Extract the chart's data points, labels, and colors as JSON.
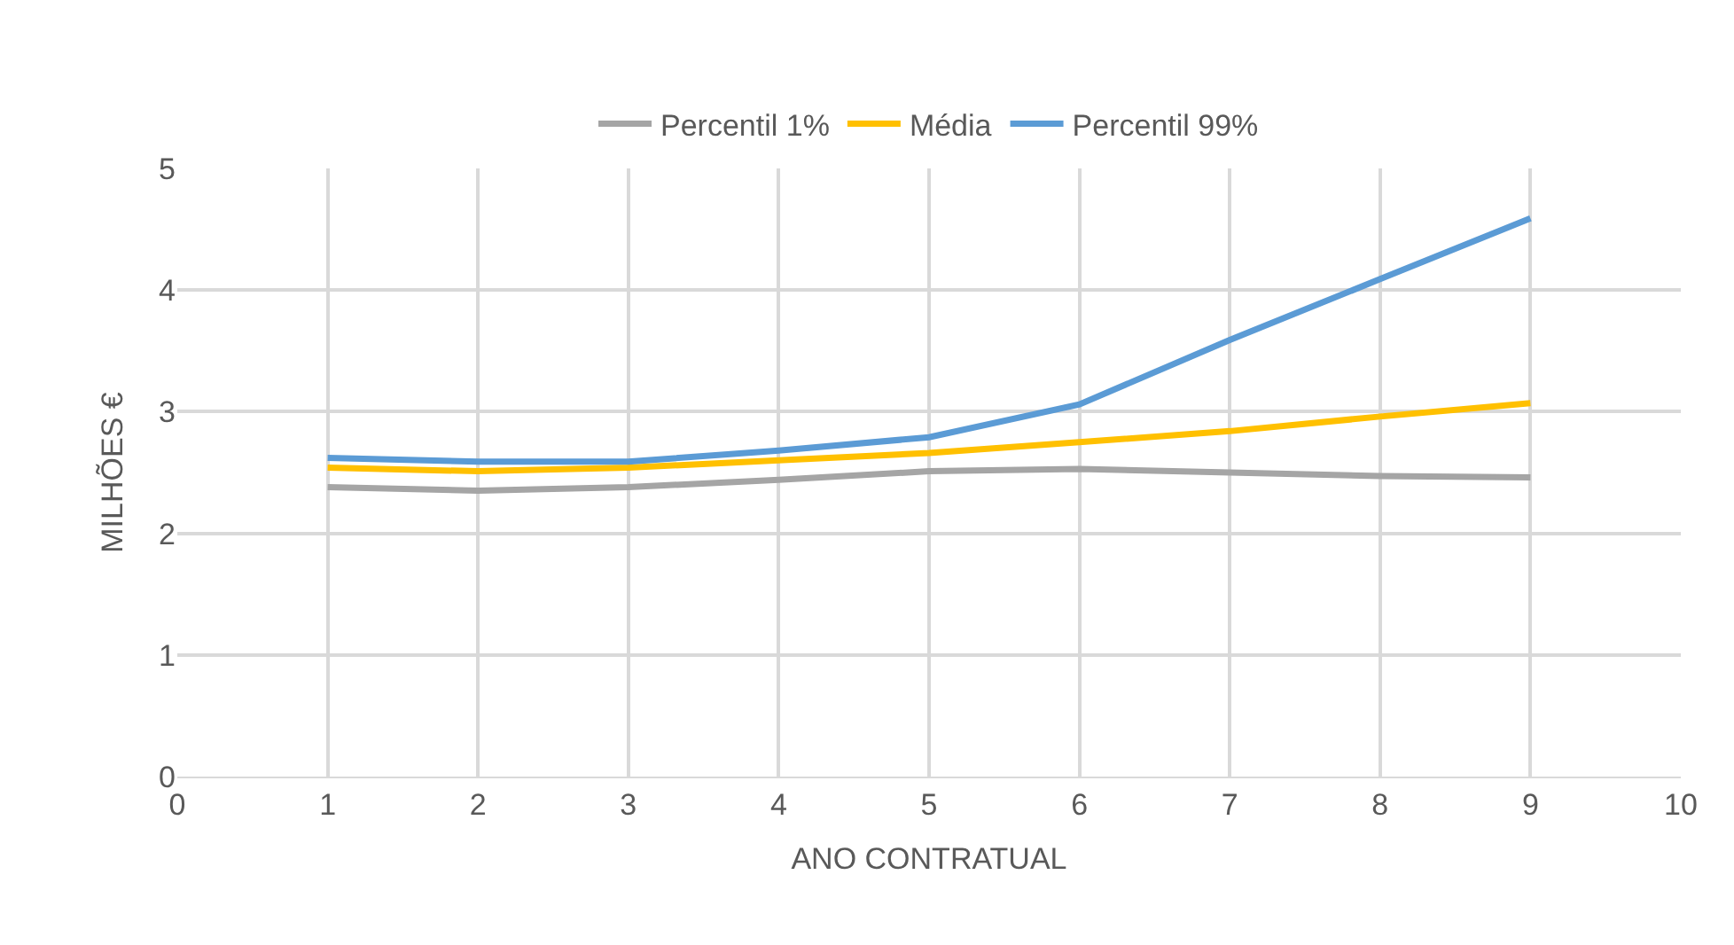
{
  "chart_data": {
    "type": "line",
    "xlabel": "ANO CONTRATUAL",
    "ylabel": "MILHÕES €",
    "x": [
      1,
      2,
      3,
      4,
      5,
      6,
      7,
      8,
      9
    ],
    "series": [
      {
        "name": "Percentil 1%",
        "color": "#a5a5a5",
        "values": [
          2.38,
          2.35,
          2.38,
          2.44,
          2.51,
          2.53,
          2.5,
          2.47,
          2.46
        ]
      },
      {
        "name": "Média",
        "color": "#ffc000",
        "values": [
          2.54,
          2.51,
          2.54,
          2.6,
          2.66,
          2.75,
          2.84,
          2.96,
          3.07
        ]
      },
      {
        "name": "Percentil 99%",
        "color": "#5b9bd5",
        "values": [
          2.62,
          2.59,
          2.59,
          2.68,
          2.79,
          3.06,
          3.59,
          4.09,
          4.59
        ]
      }
    ],
    "xlim": [
      0,
      10
    ],
    "xticks": [
      0,
      1,
      2,
      3,
      4,
      5,
      6,
      7,
      8,
      9,
      10
    ],
    "ylim": [
      0,
      5
    ],
    "yticks": [
      0,
      1,
      2,
      3,
      4,
      5
    ],
    "grid": true,
    "legend": "top",
    "marker": "none",
    "line_style": "solid"
  }
}
